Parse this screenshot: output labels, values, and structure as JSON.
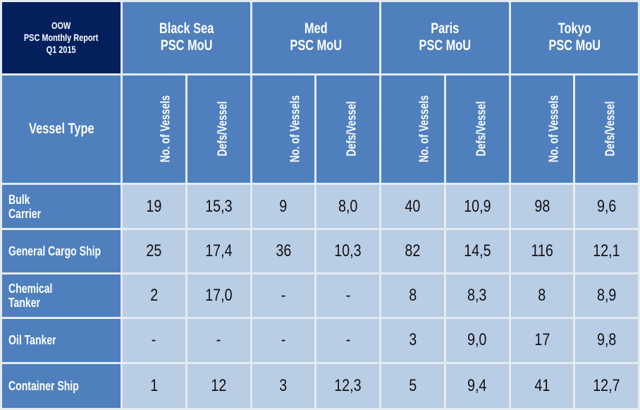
{
  "title_lines": [
    "OOW",
    "PSC Monthly Report",
    "Q1 2015"
  ],
  "regions": [
    {
      "line1": "Black Sea",
      "line2": "PSC MoU"
    },
    {
      "line1": "Med",
      "line2": "PSC MoU"
    },
    {
      "line1": "Paris",
      "line2": "PSC MoU"
    },
    {
      "line1": "Tokyo",
      "line2": "PSC MoU"
    }
  ],
  "vessel_type_header": "Vessel Type",
  "sub_headers": [
    "No. of Vessels",
    "Defs/Vessel"
  ],
  "rows": [
    {
      "name_lines": [
        "Bulk",
        "Carrier"
      ],
      "values": [
        "19",
        "15,3",
        "9",
        "8,0",
        "40",
        "10,9",
        "98",
        "9,6"
      ]
    },
    {
      "name_lines": [
        "General Cargo Ship"
      ],
      "values": [
        "25",
        "17,4",
        "36",
        "10,3",
        "82",
        "14,5",
        "116",
        "12,1"
      ]
    },
    {
      "name_lines": [
        "Chemical",
        "Tanker"
      ],
      "values": [
        "2",
        "17,0",
        "-",
        "-",
        "8",
        "8,3",
        "8",
        "8,9"
      ]
    },
    {
      "name_lines": [
        "Oil Tanker"
      ],
      "values": [
        "-",
        "-",
        "-",
        "-",
        "3",
        "9,0",
        "17",
        "9,8"
      ]
    },
    {
      "name_lines": [
        "Container Ship"
      ],
      "values": [
        "1",
        "12",
        "3",
        "12,3",
        "5",
        "9,4",
        "41",
        "12,7"
      ]
    }
  ],
  "colors": {
    "corner": "#03205d",
    "header": "#4f80bd",
    "cell": "#b9cde5",
    "border": "#e4ebf3"
  }
}
